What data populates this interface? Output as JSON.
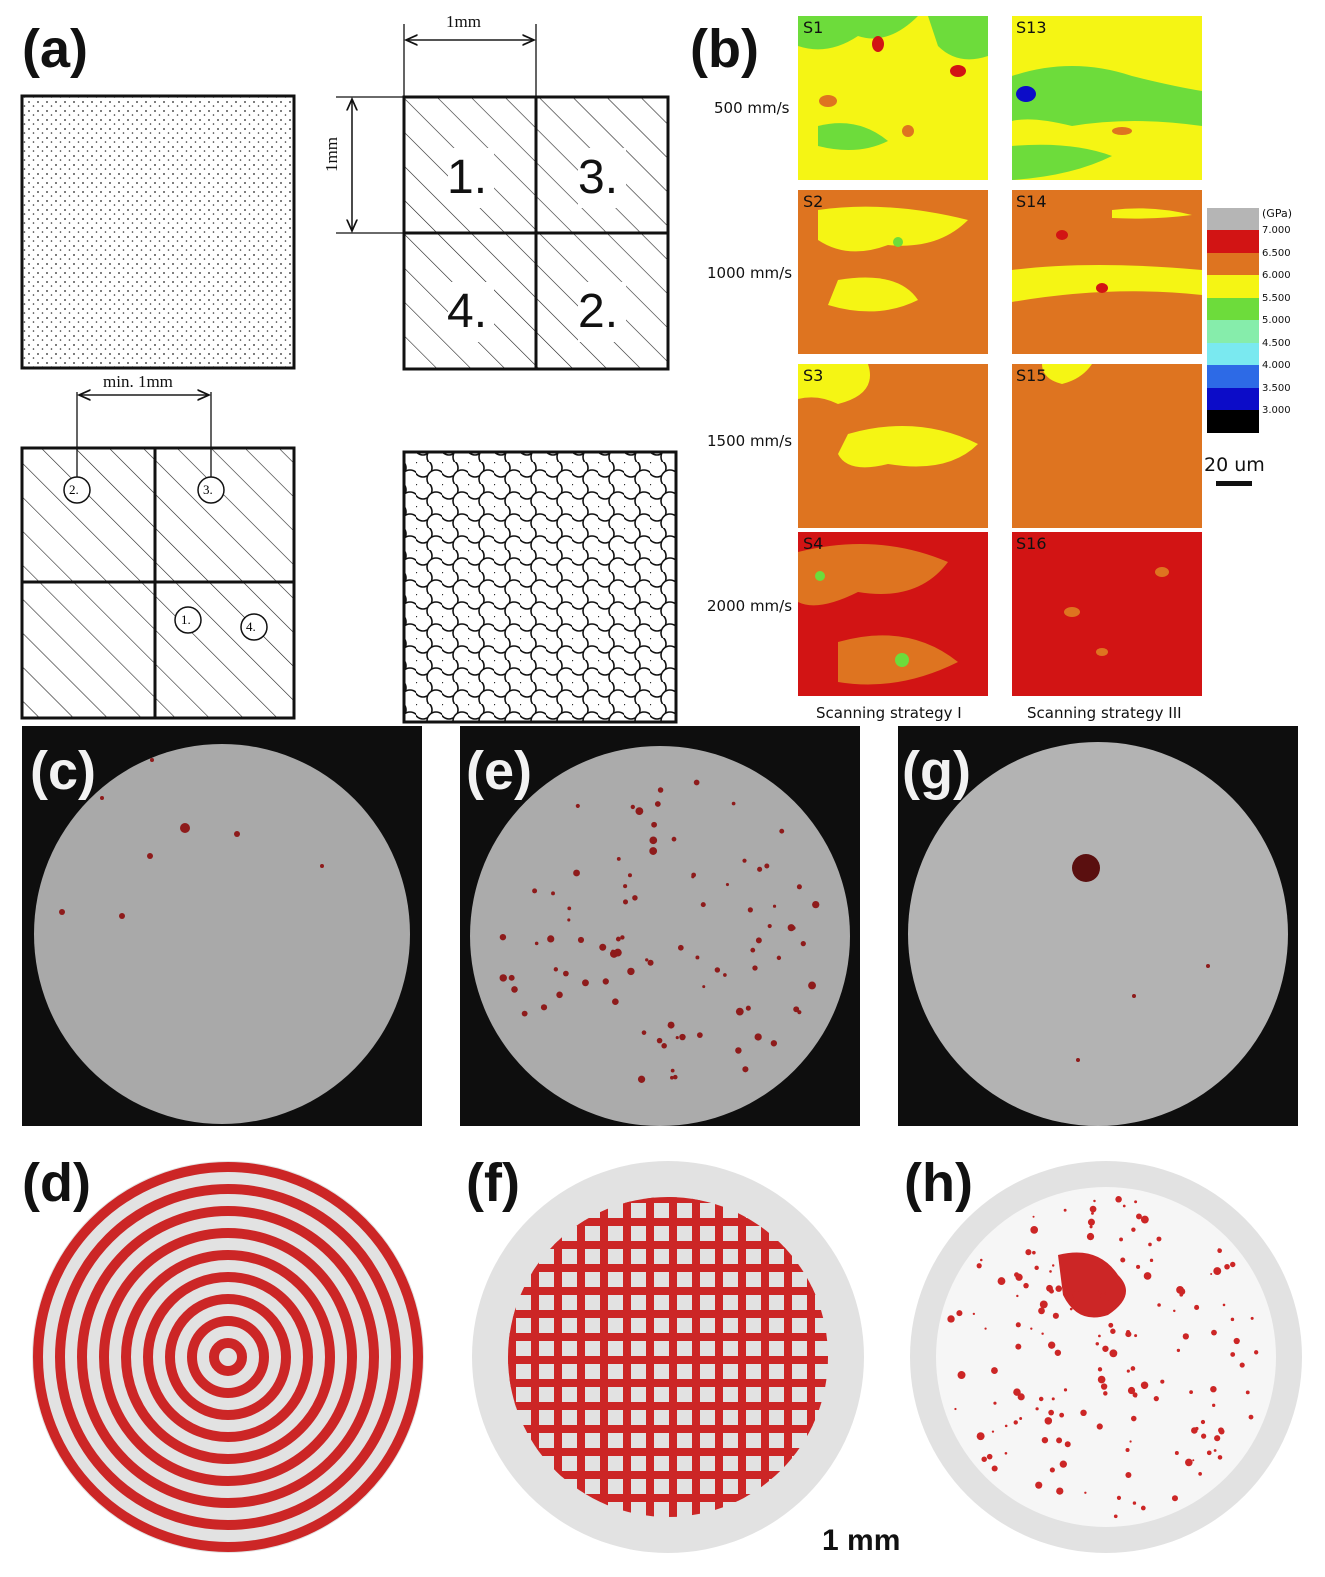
{
  "panels": {
    "a": {
      "label": "(a)",
      "dim_top": "1mm",
      "dim_side": "1mm",
      "dim_min": "min. 1mm",
      "islands": [
        "1.",
        "3.",
        "4.",
        "2."
      ],
      "spots": [
        "2.",
        "3.",
        "1.",
        "4."
      ]
    },
    "b": {
      "label": "(b)",
      "speeds": [
        "500 mm/s",
        "1000 mm/s",
        "1500 mm/s",
        "2000 mm/s"
      ],
      "left_tags": [
        "S1",
        "S2",
        "S3",
        "S4"
      ],
      "right_tags": [
        "S13",
        "S14",
        "S15",
        "S16"
      ],
      "strategy_left": "Scanning strategy I",
      "strategy_right": "Scanning strategy III",
      "colorbar": {
        "unit": "(GPa)",
        "ticks": [
          "7.000",
          "6.500",
          "6.000",
          "5.500",
          "5.000",
          "4.500",
          "4.000",
          "3.500",
          "3.000"
        ],
        "colors": [
          "#b5b5b5",
          "#d21414",
          "#de7420",
          "#f5f514",
          "#6ddc3b",
          "#86edab",
          "#7ae9f0",
          "#2d6ae6",
          "#0c0cc8",
          "#000000"
        ]
      },
      "scale": "20 um"
    },
    "c": {
      "label": "(c)"
    },
    "d": {
      "label": "(d)"
    },
    "e": {
      "label": "(e)"
    },
    "f": {
      "label": "(f)"
    },
    "g": {
      "label": "(g)"
    },
    "h": {
      "label": "(h)"
    }
  },
  "scale_bar": "1 mm"
}
